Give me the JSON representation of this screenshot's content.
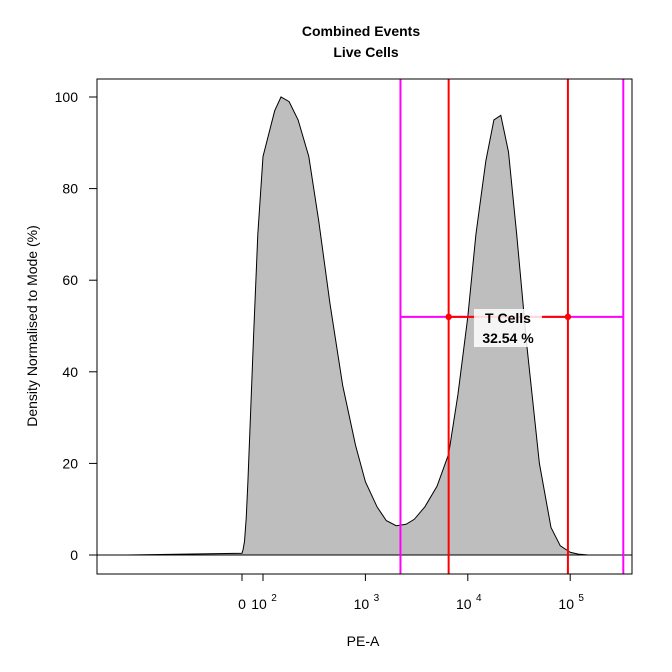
{
  "chart_data": {
    "type": "area",
    "title": "Combined Events",
    "subtitle": "Live Cells",
    "xlabel": "PE-A",
    "ylabel": "Density Normalised to Mode (%)",
    "x_scale": "biexponential",
    "ylim": [
      0,
      100
    ],
    "y_ticks": [
      0,
      20,
      40,
      60,
      80,
      100
    ],
    "x_ticks": [
      {
        "value": 0,
        "label": "0"
      },
      {
        "value": 100,
        "label": "10",
        "exp": "2"
      },
      {
        "value": 1000,
        "label": "10",
        "exp": "3"
      },
      {
        "value": 10000,
        "label": "10",
        "exp": "4"
      },
      {
        "value": 100000,
        "label": "10",
        "exp": "5"
      }
    ],
    "grid": false,
    "fill_color": "#bebebe",
    "series": [
      {
        "x": [
          -35,
          0,
          5,
          12,
          20,
          28,
          40,
          55,
          75,
          100,
          130,
          150,
          180,
          220,
          280,
          350,
          450,
          600,
          800,
          1000,
          1300,
          1600,
          2000,
          2500,
          3000,
          3800,
          5000,
          6500,
          8000,
          10000,
          12000,
          15000,
          18000,
          21000,
          25000,
          30000,
          38000,
          50000,
          65000,
          80000,
          100000,
          120000,
          150000
        ],
        "values": [
          0,
          0.4,
          1.2,
          3,
          8,
          16,
          30,
          48,
          70,
          87,
          97,
          100,
          99,
          95,
          87,
          73,
          55,
          37,
          24,
          16,
          10.5,
          7.5,
          6.4,
          6.7,
          7.8,
          10.5,
          15,
          22,
          35,
          52,
          70,
          86,
          95,
          96,
          88,
          70,
          45,
          20,
          6,
          2,
          0.6,
          0.2,
          0
        ]
      }
    ],
    "gates": [
      {
        "name": "T Cells",
        "value_label": "32.54 %",
        "x_range": [
          6500,
          95000
        ],
        "y": 52,
        "color": "#ff0000"
      },
      {
        "x_range": [
          2200,
          330000
        ],
        "y": 52,
        "color": "#ff00ff"
      }
    ]
  }
}
